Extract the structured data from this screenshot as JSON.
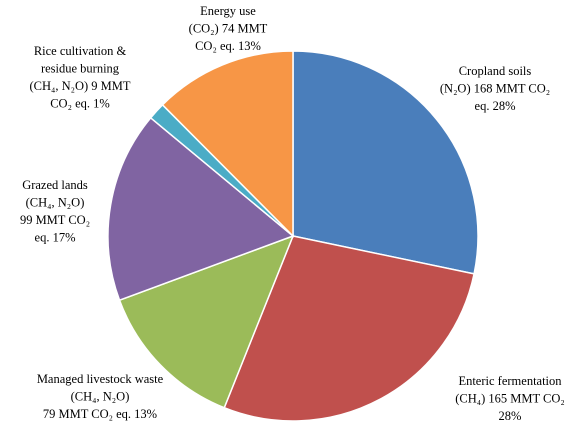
{
  "chart_data": {
    "type": "pie",
    "labels": [
      [
        "Cropland soils",
        "(N₂O) 168 MMT CO₂",
        "eq. 28%"
      ],
      [
        "Enteric fermentation",
        "(CH₄) 165 MMT CO₂",
        "28%"
      ],
      [
        "Managed livestock waste",
        "(CH₄, N₂O)",
        "79 MMT CO₂ eq. 13%"
      ],
      [
        "Grazed lands",
        "(CH₄, N₂O)",
        "99 MMT CO₂",
        "eq. 17%"
      ],
      [
        "Rice cultivation &",
        "residue burning",
        "(CH₄, N₂O)  9 MMT",
        "CO₂ eq. 1%"
      ],
      [
        "Energy use",
        "(CO₂) 74 MMT",
        "CO₂ eq. 13%"
      ]
    ],
    "values": [
      168,
      165,
      79,
      99,
      9,
      74
    ],
    "colors": [
      "#4a7ebb",
      "#c0504d",
      "#9bbb59",
      "#8064a2",
      "#4bacc6",
      "#f79646"
    ]
  }
}
